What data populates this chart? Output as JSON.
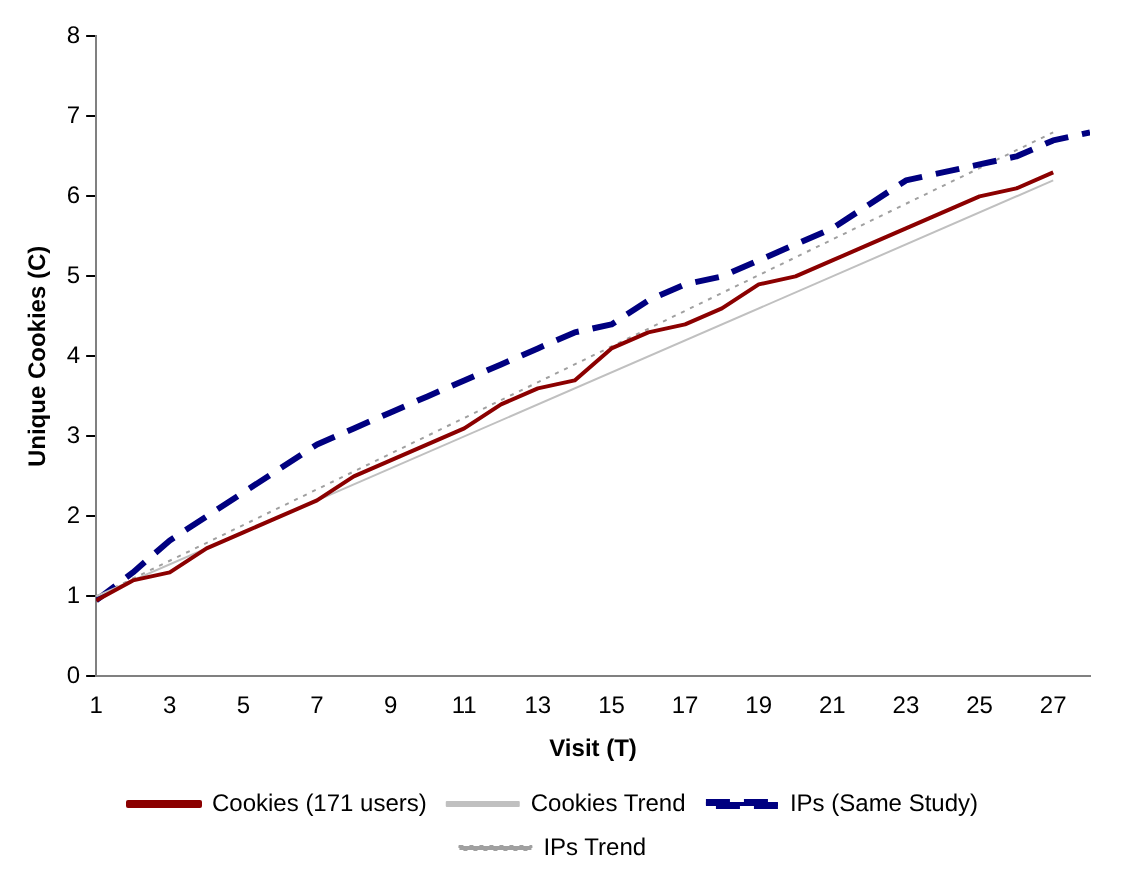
{
  "chart_data": {
    "type": "line",
    "xlabel": "Visit (T)",
    "ylabel": "Unique Cookies (C)",
    "xlim": [
      1,
      28
    ],
    "xticks": [
      1,
      3,
      5,
      7,
      9,
      11,
      13,
      15,
      17,
      19,
      21,
      23,
      25,
      27
    ],
    "ylim": [
      0,
      8
    ],
    "yticks": [
      0,
      1,
      2,
      3,
      4,
      5,
      6,
      7,
      8
    ],
    "grid": false,
    "legend": "bottom",
    "marker": "none",
    "series": [
      {
        "name": "Cookies (171 users)",
        "color": "#8b0000",
        "line_style": "solid",
        "x": [
          1,
          2,
          3,
          4,
          5,
          6,
          7,
          8,
          9,
          10,
          11,
          12,
          13,
          14,
          15,
          16,
          17,
          18,
          19,
          20,
          21,
          22,
          23,
          24,
          25,
          26,
          27
        ],
        "values": [
          0.95,
          1.2,
          1.3,
          1.6,
          1.8,
          2.0,
          2.2,
          2.5,
          2.7,
          2.9,
          3.1,
          3.4,
          3.6,
          3.7,
          4.1,
          4.3,
          4.4,
          4.6,
          4.9,
          5.0,
          5.2,
          5.4,
          5.6,
          5.8,
          6.0,
          6.1,
          6.3
        ]
      },
      {
        "name": "Cookies Trend",
        "color": "#c0c0c0",
        "line_style": "solid",
        "x": [
          1,
          27
        ],
        "values": [
          1.0,
          6.2
        ]
      },
      {
        "name": "IPs (Same Study)",
        "color": "#000080",
        "line_style": "dashed",
        "x": [
          1,
          2,
          3,
          4,
          5,
          6,
          7,
          8,
          9,
          10,
          11,
          12,
          13,
          14,
          15,
          16,
          17,
          18,
          19,
          20,
          21,
          22,
          23,
          24,
          25,
          26,
          27,
          28
        ],
        "values": [
          0.95,
          1.3,
          1.7,
          2.0,
          2.3,
          2.6,
          2.9,
          3.1,
          3.3,
          3.5,
          3.7,
          3.9,
          4.1,
          4.3,
          4.4,
          4.7,
          4.9,
          5.0,
          5.2,
          5.4,
          5.6,
          5.9,
          6.2,
          6.3,
          6.4,
          6.5,
          6.7,
          6.8
        ]
      },
      {
        "name": "IPs Trend",
        "color": "#a0a0a0",
        "line_style": "dotted",
        "x": [
          1,
          27
        ],
        "values": [
          1.0,
          6.8
        ]
      }
    ]
  }
}
